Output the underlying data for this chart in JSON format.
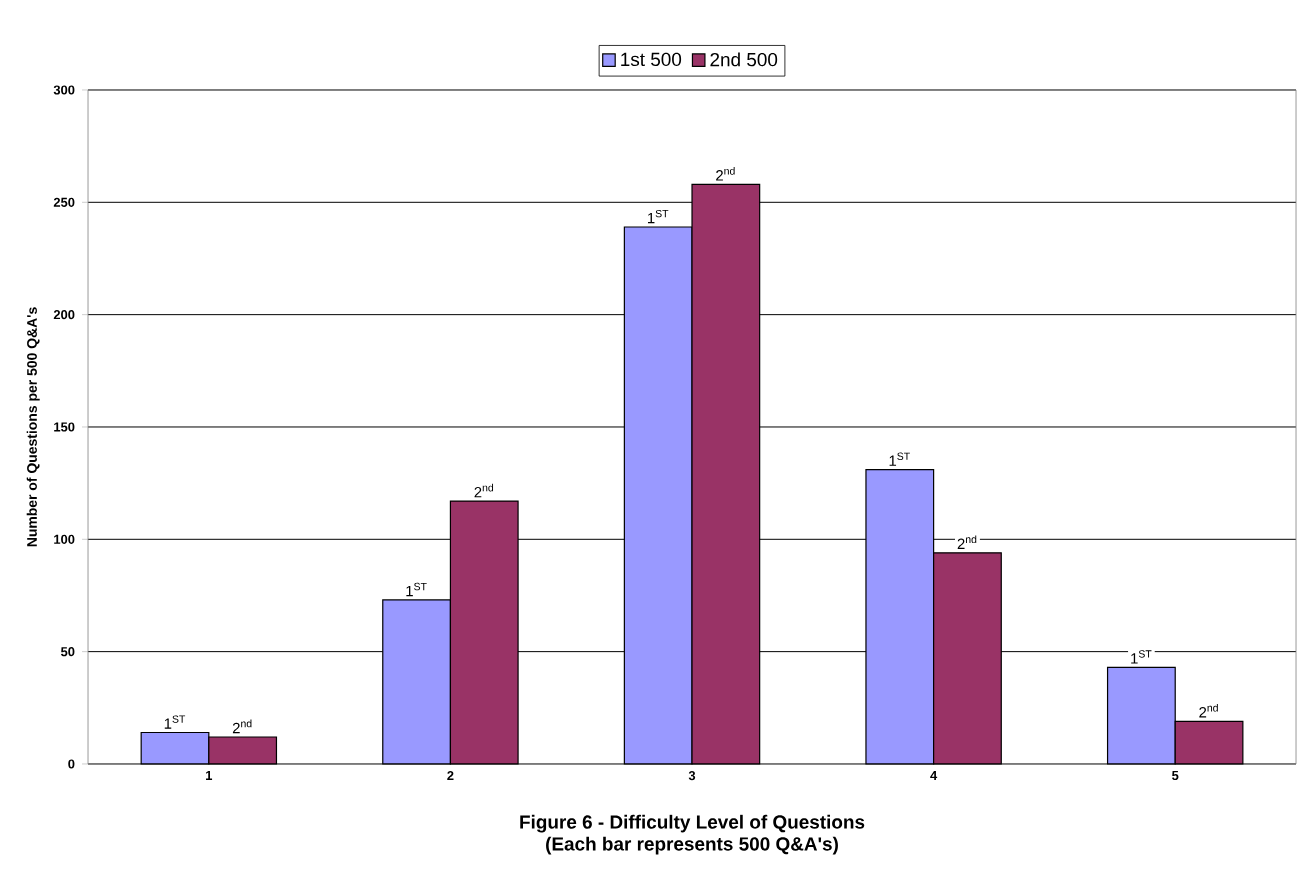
{
  "chart_data": {
    "type": "bar",
    "title": "Figure 6 - Difficulty Level of Questions",
    "subtitle": "(Each bar represents 500 Q&A's)",
    "ylabel": "Number of Questions per 500 Q&A's",
    "categories": [
      "1",
      "2",
      "3",
      "4",
      "5"
    ],
    "series": [
      {
        "name": "1st 500",
        "color": "#9999ff",
        "values": [
          14,
          73,
          239,
          131,
          43
        ]
      },
      {
        "name": "2nd 500",
        "color": "#993366",
        "values": [
          12,
          117,
          258,
          94,
          19
        ]
      }
    ],
    "annotations": [
      {
        "text": "1$^{ST}$",
        "x": "1",
        "y": 14
      },
      {
        "text": "1$^{ST}$",
        "x": "2",
        "y": 73
      },
      {
        "text": "1$^{ST}$",
        "x": "3",
        "y": 239
      },
      {
        "text": "1$^{ST}$",
        "x": "4",
        "y": 131
      },
      {
        "text": "1$^{ST}$",
        "x": "5",
        "y": 43
      },
      {
        "text": "2$^{nd}$",
        "x": "1",
        "y": 12
      },
      {
        "text": "2$^{nd}$",
        "x": "2",
        "y": 117
      },
      {
        "text": "2$^{nd}$",
        "x": "3",
        "y": 258
      },
      {
        "text": "2$^{nd}$",
        "x": "4",
        "y": 94
      },
      {
        "text": "2$^{nd}$",
        "x": "5",
        "y": 19
      }
    ],
    "ylim": [
      0,
      300
    ],
    "yticks": [
      0,
      50,
      100,
      150,
      200,
      250,
      300
    ],
    "grid": "y",
    "legend": "top"
  }
}
